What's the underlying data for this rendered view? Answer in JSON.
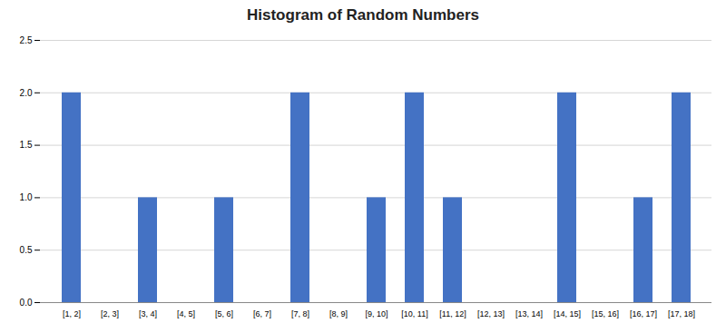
{
  "chart_data": {
    "type": "bar",
    "title": "Histogram of Random Numbers",
    "categories": [
      "[1, 2]",
      "[2, 3]",
      "[3, 4]",
      "[4, 5]",
      "[5, 6]",
      "[6, 7]",
      "[7, 8]",
      "[8, 9]",
      "[9, 10]",
      "[10, 11]",
      "[11, 12]",
      "[12, 13]",
      "[13, 14]",
      "[14, 15]",
      "[15, 16]",
      "[16, 17]",
      "[17, 18]"
    ],
    "values": [
      2,
      0,
      1,
      0,
      1,
      0,
      2,
      0,
      1,
      2,
      1,
      0,
      0,
      2,
      0,
      1,
      2
    ],
    "color": "#4472C4",
    "ylim": [
      0,
      2.5
    ],
    "yticks": [
      0,
      0.5,
      1,
      1.5,
      2,
      2.5
    ],
    "grid": true
  }
}
